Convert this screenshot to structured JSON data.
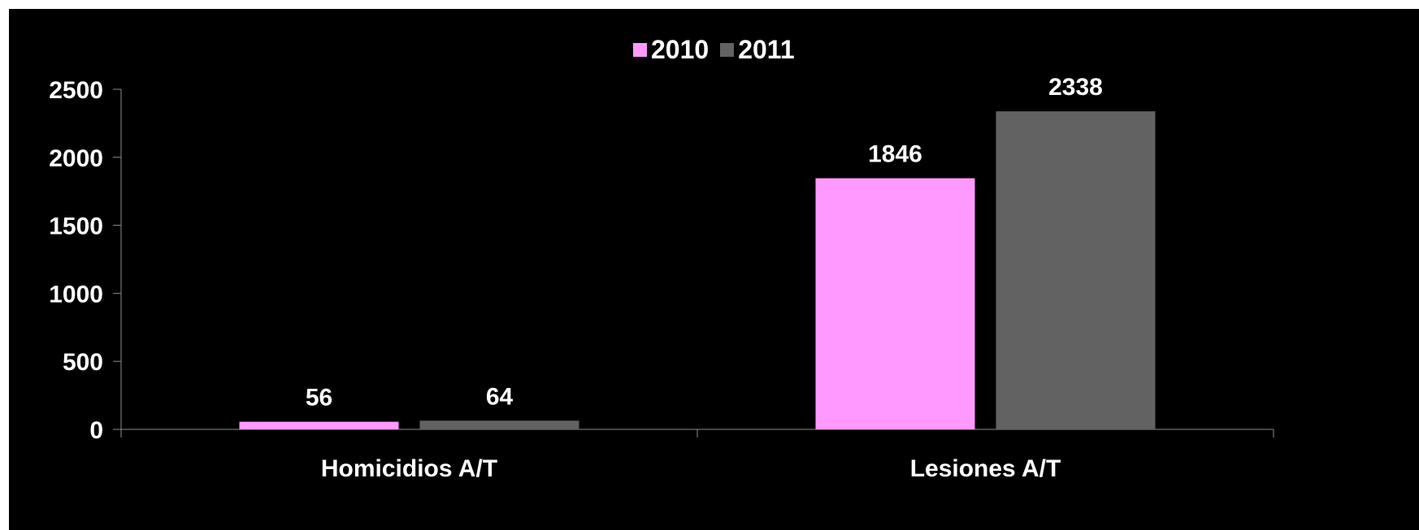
{
  "chart_data": {
    "type": "bar",
    "categories": [
      "Homicidios A/T",
      "Lesiones A/T"
    ],
    "series": [
      {
        "name": "2010",
        "values": [
          56,
          1846
        ],
        "color": "#ff99ff"
      },
      {
        "name": "2011",
        "values": [
          64,
          2338
        ],
        "color": "#626262"
      }
    ],
    "ylim": [
      0,
      2500
    ],
    "yticks": [
      "0",
      "500",
      "1000",
      "1500",
      "2000",
      "2500"
    ],
    "legend_position": "top-center",
    "background": "#000000",
    "grid": false,
    "title": "",
    "xlabel": "",
    "ylabel": ""
  }
}
